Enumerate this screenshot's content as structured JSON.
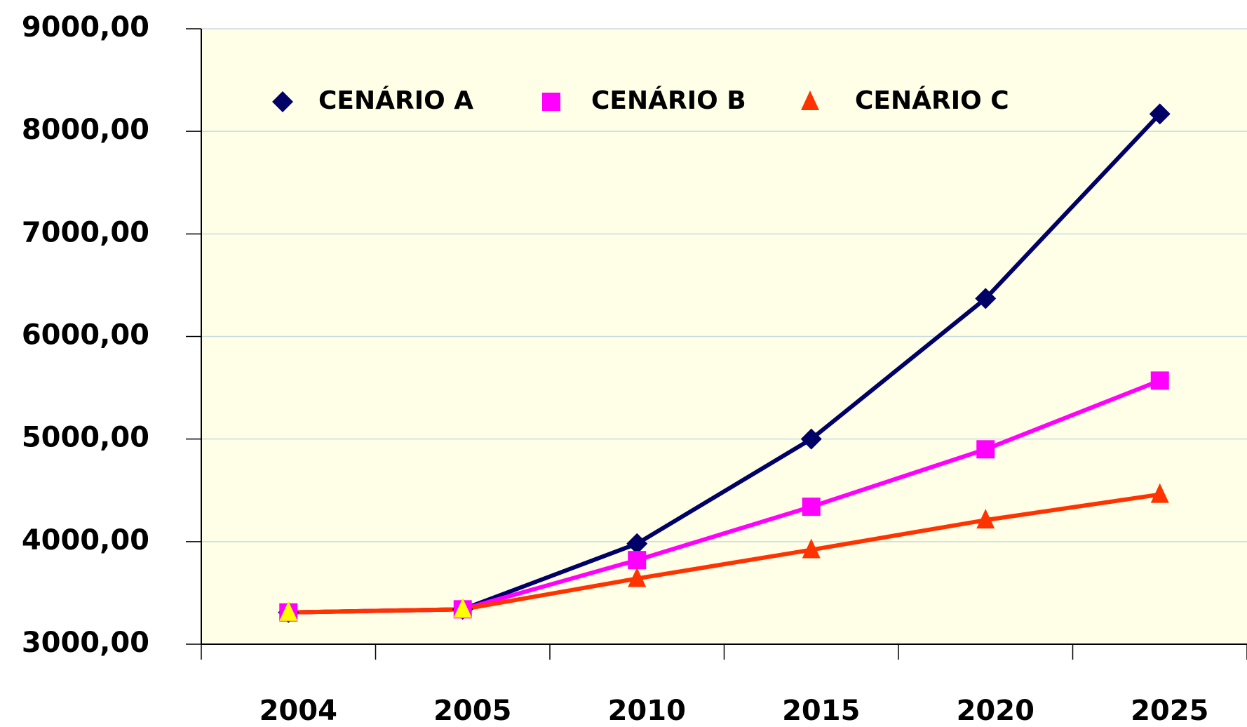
{
  "chart_data": {
    "type": "line",
    "categories": [
      "2004",
      "2005",
      "2010",
      "2015",
      "2020",
      "2025"
    ],
    "series": [
      {
        "name": "CENÁRIO A",
        "color": "#000066",
        "marker": "diamond",
        "values": [
          3310,
          3340,
          3980,
          5000,
          6370,
          8170
        ]
      },
      {
        "name": "CENÁRIO B",
        "color": "#ff00ff",
        "marker": "square",
        "values": [
          3310,
          3340,
          3820,
          4340,
          4900,
          5570
        ]
      },
      {
        "name": "CENÁRIO C",
        "color": "#ff3300",
        "marker": "triangle",
        "marker_colors": [
          "#ffff00",
          "#ffff00",
          "#ff3300",
          "#ff3300",
          "#ff3300",
          "#ff3300"
        ],
        "values": [
          3310,
          3340,
          3640,
          3920,
          4210,
          4460
        ]
      }
    ],
    "ylim": [
      3000,
      9000
    ],
    "yticks": [
      {
        "value": 3000,
        "label": "3000,00"
      },
      {
        "value": 4000,
        "label": "4000,00"
      },
      {
        "value": 5000,
        "label": "5000,00"
      },
      {
        "value": 6000,
        "label": "6000,00"
      },
      {
        "value": 7000,
        "label": "7000,00"
      },
      {
        "value": 8000,
        "label": "8000,00"
      },
      {
        "value": 9000,
        "label": "9000,00"
      }
    ],
    "grid": true,
    "legend": "top",
    "background": "#ffffe8"
  }
}
